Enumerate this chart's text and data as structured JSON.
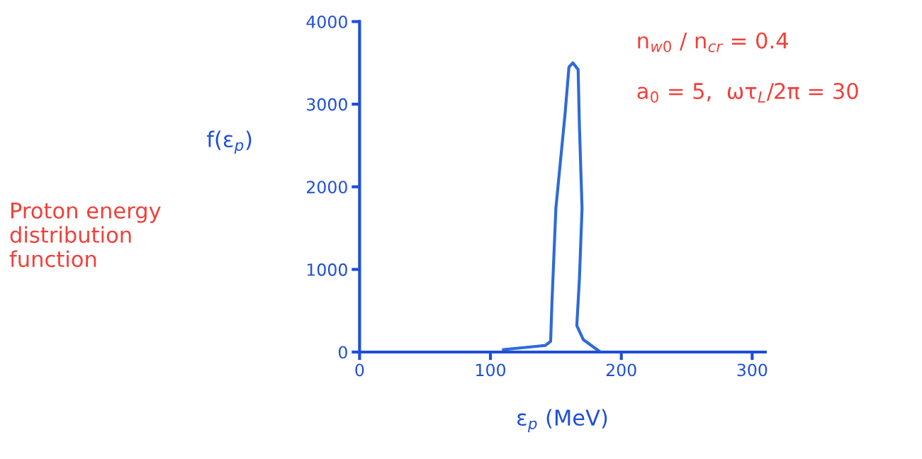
{
  "chart_data": {
    "type": "line",
    "xlabel": "ε$_{p}$ (MeV)",
    "ylabel": "f(ε$_{p}$)",
    "x": [
      110,
      142,
      146,
      147,
      150,
      157,
      160,
      163,
      167,
      168,
      170,
      168,
      166,
      171,
      184
    ],
    "series": [
      {
        "color": "#2f6ad8",
        "values": [
          30,
          80,
          130,
          600,
          1740,
          2880,
          3450,
          3500,
          3420,
          2730,
          1740,
          890,
          320,
          150,
          0
        ]
      }
    ],
    "xlim": [
      0,
      310
    ],
    "xticks": [
      0,
      100,
      200,
      300
    ],
    "ylim": [
      0,
      4000
    ],
    "yticks": [
      0,
      1000,
      2000,
      3000,
      4000
    ],
    "grid": false,
    "marker": "none",
    "line_style": "solid",
    "annotations": [
      "n$_{w0}$ / n$_{cr}$ = 0.4",
      "a$_{0}$ = 5,  ωτ$_{L}$/2π = 30",
      "Proton energy\ndistribution\nfunction"
    ]
  }
}
